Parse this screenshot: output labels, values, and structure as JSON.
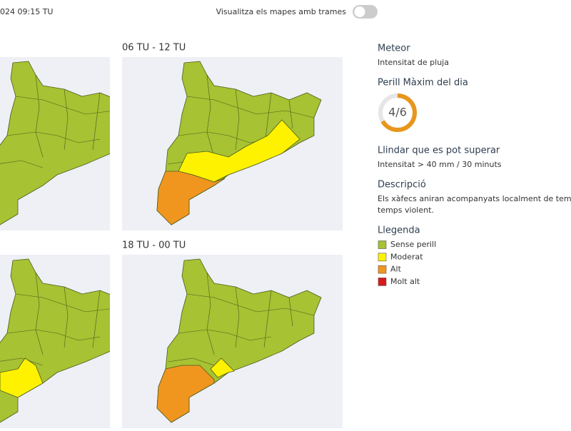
{
  "header": {
    "timestamp": "024 09:15 TU",
    "toggle_label": "Visualitza els mapes amb trames"
  },
  "maps": [
    {
      "title": "06 TU - 12 TU"
    },
    {
      "title": "18 TU - 00 TU"
    }
  ],
  "panel": {
    "meteor": {
      "title": "Meteor",
      "text": "Intensitat de pluja"
    },
    "danger": {
      "title": "Perill Màxim del dia",
      "level": 4,
      "max": 6,
      "label": "4/6",
      "color": "#e8961e"
    },
    "threshold": {
      "title": "Llindar que es pot superar",
      "text": "Intensitat > 40 mm / 30 minuts"
    },
    "description": {
      "title": "Descripció",
      "lines": [
        "Els xàfecs aniran acompanyats localment de tempesta, i",
        "temps violent."
      ]
    },
    "legend": {
      "title": "Llegenda",
      "items": [
        {
          "label": "Sense perill",
          "color": "#a7c232"
        },
        {
          "label": "Moderat",
          "color": "#fef200"
        },
        {
          "label": "Alt",
          "color": "#f0961e"
        },
        {
          "label": "Molt alt",
          "color": "#d7191c"
        }
      ]
    }
  }
}
